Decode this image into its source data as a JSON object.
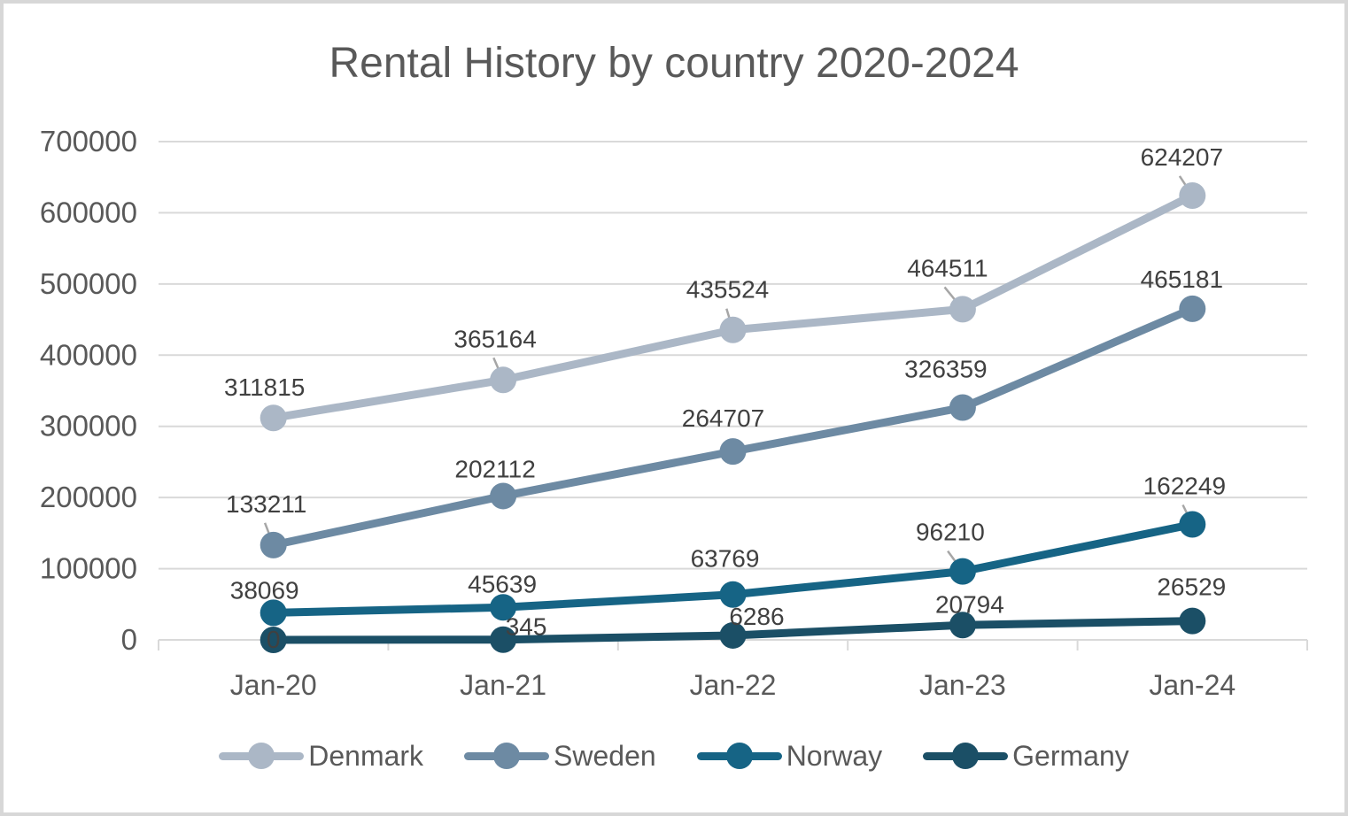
{
  "title": "Rental History by country 2020-2024",
  "chart_data": {
    "type": "line",
    "title": "Rental History by country 2020-2024",
    "categories": [
      "Jan-20",
      "Jan-21",
      "Jan-22",
      "Jan-23",
      "Jan-24"
    ],
    "series": [
      {
        "name": "Denmark",
        "color": "#ABB7C6",
        "values": [
          311815,
          365164,
          435524,
          464511,
          624207
        ],
        "data_labels": [
          "311815",
          "365164",
          "435524",
          "464511",
          "624207"
        ],
        "label_offsets": [
          [
            -10,
            -25
          ],
          [
            -9,
            -37
          ],
          [
            -6,
            -36
          ],
          [
            -17,
            -37
          ],
          [
            -12,
            -34
          ]
        ],
        "leader_lines": [
          false,
          true,
          true,
          true,
          true
        ]
      },
      {
        "name": "Sweden",
        "color": "#6D8AA3",
        "values": [
          133211,
          202112,
          264707,
          326359,
          465181
        ],
        "data_labels": [
          "133211",
          "202112",
          "264707",
          "326359",
          "465181"
        ],
        "label_offsets": [
          [
            -8,
            -37
          ],
          [
            -9,
            -21
          ],
          [
            -11,
            -28
          ],
          [
            -19,
            -34
          ],
          [
            -12,
            -24
          ]
        ],
        "leader_lines": [
          true,
          false,
          false,
          false,
          false
        ]
      },
      {
        "name": "Norway",
        "color": "#166485",
        "values": [
          38069,
          45639,
          63769,
          96210,
          162249
        ],
        "data_labels": [
          "38069",
          "45639",
          "63769",
          "96210",
          "162249"
        ],
        "label_offsets": [
          [
            -10,
            -16
          ],
          [
            -1,
            -17
          ],
          [
            -9,
            -31
          ],
          [
            -14,
            -35
          ],
          [
            -9,
            -34
          ]
        ],
        "leader_lines": [
          false,
          false,
          false,
          true,
          true
        ]
      },
      {
        "name": "Germany",
        "color": "#1B4F66",
        "values": [
          0,
          345,
          6286,
          20794,
          26529
        ],
        "data_labels": [
          "0",
          "345",
          "6286",
          "20794",
          "26529"
        ],
        "label_offsets": [
          [
            0,
            9
          ],
          [
            26,
            -5
          ],
          [
            27,
            -12
          ],
          [
            8,
            -14
          ],
          [
            -1,
            -29
          ]
        ],
        "leader_lines": [
          false,
          false,
          false,
          false,
          false
        ]
      }
    ],
    "xlabel": "",
    "ylabel": "",
    "ylim": [
      0,
      700000
    ],
    "y_ticks": [
      0,
      100000,
      200000,
      300000,
      400000,
      500000,
      600000,
      700000
    ],
    "grid": true,
    "legend_position": "bottom",
    "grid_color": "#D9D9D9",
    "axis_label_color": "#595959",
    "data_label_color": "#404040",
    "leader_color": "#A6A6A6"
  }
}
